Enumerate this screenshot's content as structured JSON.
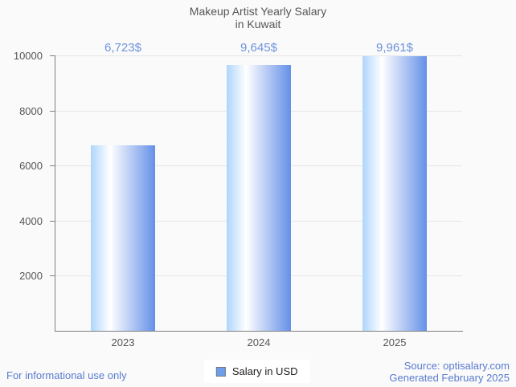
{
  "title": {
    "line1": "Makeup Artist Yearly Salary",
    "line2": "in Kuwait"
  },
  "chart_data": {
    "type": "bar",
    "categories": [
      "2023",
      "2024",
      "2025"
    ],
    "series": [
      {
        "name": "Salary in USD",
        "values": [
          6723,
          9645,
          9961
        ]
      }
    ],
    "value_labels": [
      "6,723$",
      "9,645$",
      "9,961$"
    ],
    "title": "Makeup Artist Yearly Salary in Kuwait",
    "xlabel": "",
    "ylabel": "",
    "ylim": [
      0,
      10000
    ],
    "yticks": [
      2000,
      4000,
      6000,
      8000,
      10000
    ],
    "grid": true,
    "legend_position": "bottom"
  },
  "legend": {
    "label": "Salary in USD"
  },
  "footer": {
    "left": "For informational use only",
    "source": "Source: optisalary.com",
    "generated": "Generated February 2025"
  },
  "colors": {
    "background": "#fafafa",
    "bar_gradient_left": "#aed5fc",
    "bar_gradient_mid": "#ffffff",
    "bar_gradient_right": "#6590e8",
    "value_label": "#6d93dd",
    "footer_text": "#5b7bd0",
    "axis_line": "#7f7f7f",
    "gridline": "#e6e6e6",
    "legend_swatch": "#6d9eeb",
    "text": "#565656"
  }
}
